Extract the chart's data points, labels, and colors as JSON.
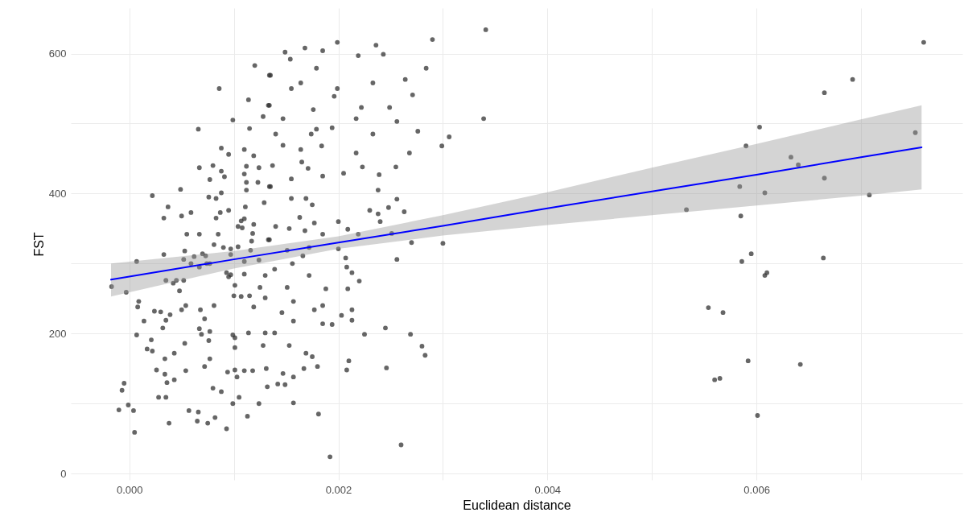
{
  "chart_data": {
    "type": "scatter",
    "xlabel": "Euclidean distance",
    "ylabel": "FST",
    "xlim": [
      -0.00056,
      0.00797
    ],
    "ylim": [
      -9,
      665
    ],
    "xticks": [
      {
        "value": 0,
        "label": "0.000"
      },
      {
        "value": 0.001,
        "label": null
      },
      {
        "value": 0.002,
        "label": "0.002"
      },
      {
        "value": 0.003,
        "label": null
      },
      {
        "value": 0.004,
        "label": "0.004"
      },
      {
        "value": 0.005,
        "label": null
      },
      {
        "value": 0.006,
        "label": "0.006"
      },
      {
        "value": 0.007,
        "label": null
      }
    ],
    "yticks": [
      0,
      {
        "value": 100,
        "label": null
      },
      200,
      {
        "value": 300,
        "label": null
      },
      400,
      {
        "value": 500,
        "label": null
      },
      600
    ],
    "grid": true,
    "series": [
      {
        "type": "scatter",
        "color": "#333333",
        "marker": "circle",
        "x": [
          0.0076,
          0.00692,
          0.00665,
          0.00603,
          0.00752,
          0.0059,
          0.00633,
          0.0064,
          0.00665,
          0.00584,
          0.00608,
          0.00708,
          0.00533,
          0.00585,
          0.00595,
          0.00586,
          0.00664,
          0.0061,
          0.00608,
          0.00554,
          0.00568,
          0.00592,
          0.00642,
          0.0056,
          0.00565,
          0.00601,
          0.00341,
          0.0029,
          0.00236,
          0.00199,
          0.00168,
          0.00185,
          0.00149,
          0.00154,
          0.00219,
          0.00243,
          0.00179,
          0.00284,
          0.00135,
          0.00164,
          0.00233,
          0.00155,
          0.00264,
          0.00271,
          0.00196,
          0.00199,
          0.00134,
          0.00176,
          0.00222,
          0.00249,
          0.00339,
          0.00217,
          0.00256,
          0.00147,
          0.00179,
          0.00194,
          0.00233,
          0.00276,
          0.0014,
          0.00174,
          0.00306,
          0.00299,
          0.00147,
          0.00164,
          0.00184,
          0.00217,
          0.00268,
          0.00165,
          0.00137,
          0.00171,
          0.00185,
          0.00205,
          0.00223,
          0.00239,
          0.00255,
          0.00155,
          0.00135,
          0.00238,
          0.00155,
          0.00169,
          0.00175,
          0.00256,
          0.00248,
          0.0023,
          0.00263,
          0.00238,
          0.00163,
          0.0024,
          0.002,
          0.00209,
          0.00177,
          0.0014,
          0.00153,
          0.00168,
          0.00185,
          0.00251,
          0.00219,
          0.00134,
          0.0027,
          0.003,
          0.002,
          0.00172,
          0.00151,
          0.00166,
          0.00207,
          0.00256,
          0.00156,
          0.00139,
          0.00208,
          0.00172,
          0.00213,
          0.0022,
          0.00151,
          0.00188,
          0.00209,
          0.00157,
          0.00185,
          0.00177,
          0.00213,
          0.00146,
          0.00203,
          0.00157,
          0.00185,
          0.00194,
          0.00213,
          0.00245,
          0.00225,
          0.00269,
          0.00139,
          0.0028,
          0.00283,
          0.00153,
          0.00169,
          0.00175,
          0.0021,
          0.00167,
          0.0018,
          0.00208,
          0.00246,
          0.00147,
          0.00157,
          0.00142,
          0.00149,
          0.00157,
          0.00181,
          0.0026,
          0.00192,
          0.0012,
          0.00134,
          0.00086,
          0.00114,
          0.00133,
          0.00128,
          0.00099,
          0.00115,
          0.00066,
          0.00088,
          0.0011,
          0.00095,
          0.00119,
          0.00067,
          0.0008,
          0.00112,
          0.00124,
          0.00088,
          0.00091,
          0.0011,
          0.00077,
          0.00123,
          0.00112,
          0.00049,
          0.00134,
          0.00112,
          0.00022,
          0.00076,
          0.00083,
          0.00088,
          0.00129,
          0.00037,
          0.00111,
          0.00059,
          0.0005,
          0.00033,
          0.00087,
          0.00095,
          0.00083,
          0.0011,
          0.00107,
          0.00104,
          0.00108,
          0.00119,
          0.00118,
          0.00055,
          0.00067,
          0.00085,
          0.00117,
          0.00133,
          0.00081,
          0.0009,
          0.00097,
          0.00104,
          0.00116,
          0.00053,
          0.00033,
          0.00062,
          0.0007,
          0.00073,
          0.00052,
          0.00097,
          0.0011,
          0.00124,
          7e-05,
          0.00059,
          0.00067,
          0.00074,
          0.00077,
          0.00093,
          0.00097,
          0.00095,
          0.0011,
          0.0013,
          0.00035,
          0.00045,
          0.00052,
          0.00042,
          -0.00017,
          0.00101,
          -3e-05,
          0.00048,
          0.00125,
          0.001,
          0.00107,
          0.00115,
          0.0013,
          9e-05,
          8e-05,
          0.00119,
          0.00054,
          0.00081,
          0.00024,
          0.0003,
          0.0005,
          0.00068,
          0.00039,
          0.00035,
          0.00014,
          0.00072,
          0.00032,
          0.00067,
          0.00069,
          0.00077,
          0.00099,
          0.00114,
          0.0013,
          7e-05,
          0.00021,
          0.00076,
          0.00101,
          0.00053,
          0.00128,
          0.00017,
          0.00022,
          0.00101,
          0.00043,
          0.00034,
          0.00077,
          0.00072,
          0.00026,
          0.00054,
          0.00094,
          0.00101,
          0.0011,
          0.00118,
          0.00131,
          0.00034,
          0.00103,
          -5e-05,
          0.00036,
          0.00043,
          -7e-05,
          0.0008,
          0.00088,
          0.00132,
          0.00028,
          0.00035,
          0.00105,
          0.00099,
          -1e-05,
          0.00124,
          -0.0001,
          4e-05,
          0.00057,
          0.00066,
          0.00113,
          0.00038,
          0.00065,
          0.00075,
          0.00082,
          0.00093,
          5e-05
        ],
        "values": [
          616,
          563,
          544,
          495,
          487,
          468,
          452,
          441,
          422,
          410,
          401,
          398,
          377,
          368,
          314,
          303,
          308,
          287,
          283,
          237,
          230,
          161,
          156,
          134,
          136,
          83,
          634,
          620,
          612,
          616,
          608,
          604,
          602,
          592,
          597,
          599,
          579,
          579,
          569,
          558,
          558,
          550,
          563,
          541,
          539,
          550,
          526,
          520,
          523,
          523,
          507,
          507,
          503,
          507,
          492,
          494,
          485,
          489,
          485,
          485,
          481,
          468,
          469,
          463,
          468,
          458,
          458,
          445,
          440,
          436,
          425,
          429,
          438,
          427,
          438,
          421,
          410,
          405,
          393,
          393,
          384,
          392,
          380,
          376,
          374,
          371,
          366,
          360,
          360,
          349,
          358,
          353,
          350,
          347,
          342,
          343,
          342,
          334,
          330,
          329,
          321,
          323,
          319,
          311,
          308,
          306,
          300,
          292,
          295,
          283,
          287,
          275,
          266,
          264,
          264,
          246,
          240,
          234,
          234,
          230,
          226,
          218,
          214,
          213,
          219,
          208,
          199,
          199,
          201,
          182,
          169,
          183,
          172,
          167,
          161,
          150,
          153,
          148,
          151,
          143,
          138,
          128,
          127,
          101,
          85,
          41,
          24,
          583,
          569,
          550,
          534,
          526,
          510,
          505,
          493,
          492,
          465,
          463,
          456,
          454,
          437,
          440,
          439,
          437,
          432,
          424,
          428,
          420,
          416,
          416,
          406,
          410,
          405,
          397,
          395,
          393,
          401,
          387,
          381,
          381,
          373,
          368,
          365,
          373,
          376,
          365,
          364,
          361,
          353,
          351,
          356,
          343,
          342,
          342,
          342,
          332,
          334,
          327,
          323,
          321,
          324,
          319,
          318,
          313,
          310,
          314,
          311,
          306,
          313,
          303,
          305,
          303,
          300,
          295,
          300,
          300,
          287,
          284,
          281,
          285,
          283,
          276,
          276,
          276,
          272,
          267,
          269,
          259,
          261,
          266,
          254,
          253,
          254,
          251,
          246,
          238,
          238,
          240,
          240,
          232,
          231,
          234,
          234,
          227,
          219,
          218,
          221,
          208,
          207,
          199,
          203,
          198,
          201,
          201,
          198,
          191,
          190,
          194,
          186,
          183,
          178,
          175,
          180,
          172,
          164,
          164,
          153,
          148,
          147,
          145,
          148,
          147,
          147,
          150,
          142,
          138,
          129,
          130,
          134,
          119,
          122,
          117,
          124,
          109,
          109,
          109,
          100,
          98,
          100,
          91,
          90,
          90,
          88,
          82,
          72,
          75,
          72,
          80,
          64,
          59
        ]
      },
      {
        "type": "line",
        "color": "#0000ff",
        "x": [
          -0.000175,
          0.001,
          0.002,
          0.003,
          0.004,
          0.005,
          0.006,
          0.007,
          0.00758
        ],
        "values": [
          277,
          306,
          330,
          354,
          379,
          403,
          427,
          452,
          466
        ],
        "lower": [
          253,
          293,
          321,
          340,
          355,
          369,
          383,
          397,
          406
        ],
        "upper": [
          300,
          318,
          339,
          369,
          402,
          437,
          471,
          506,
          526
        ]
      }
    ]
  }
}
